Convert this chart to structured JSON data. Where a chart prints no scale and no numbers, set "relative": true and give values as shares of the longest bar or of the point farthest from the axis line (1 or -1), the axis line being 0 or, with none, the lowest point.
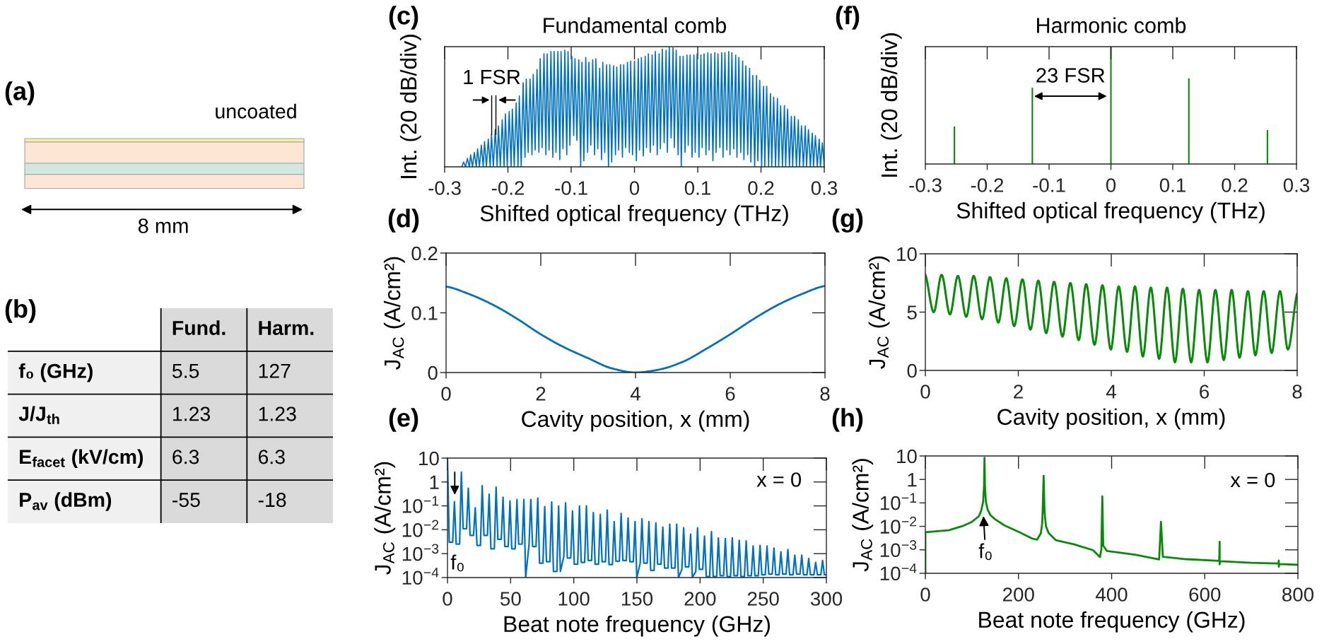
{
  "chart_data": [
    {
      "type": "other",
      "annotations": [
        "(a)",
        "uncoated",
        "8 mm"
      ]
    },
    {
      "type": "other",
      "categories": [
        "f₀ (GHz)",
        "J/J$_{th}$",
        "E$_{facet}$ (kV/cm)",
        "P$_{av}$ (dBm)"
      ],
      "series": [
        {
          "name": "Fund.",
          "values": [
            5.5,
            1.23,
            6.3,
            -55
          ]
        },
        {
          "name": "Harm.",
          "values": [
            127,
            1.23,
            6.3,
            -18
          ]
        }
      ],
      "data_labels": true,
      "annotations": [
        "(b)"
      ]
    },
    {
      "type": "line",
      "title": "Fundamental comb",
      "xlabel": "Shifted optical frequency (THz)",
      "ylabel": "Int. (20 dB/div)",
      "relative": true,
      "xlim": [
        -0.3,
        0.3
      ],
      "xticks": [
        -0.3,
        -0.2,
        -0.1,
        0,
        0.1,
        0.2,
        0.3
      ],
      "series": [
        {
          "color": "#0072bd",
          "x": [
            -0.273,
            -0.27,
            -0.267,
            -0.264,
            -0.261,
            -0.259,
            -0.256,
            -0.253,
            -0.25,
            -0.248,
            -0.245,
            -0.242,
            -0.239,
            -0.237,
            -0.234,
            -0.231,
            -0.228,
            -0.226,
            -0.223,
            -0.22,
            -0.217,
            -0.215,
            -0.212,
            -0.209,
            -0.206,
            -0.204,
            -0.201,
            -0.198,
            -0.195,
            -0.193,
            -0.19,
            -0.187,
            -0.184,
            -0.182,
            -0.179,
            -0.176,
            -0.173,
            -0.171,
            -0.168,
            -0.165,
            -0.162,
            -0.16,
            -0.157,
            -0.154,
            -0.151,
            -0.149,
            -0.146,
            -0.143,
            -0.14,
            -0.138,
            -0.135,
            -0.132,
            -0.129,
            -0.127,
            -0.124,
            -0.121,
            -0.118,
            -0.116,
            -0.113,
            -0.11,
            -0.107,
            -0.105,
            -0.102,
            -0.099,
            -0.096,
            -0.094,
            -0.091,
            -0.088,
            -0.085,
            -0.083,
            -0.08,
            -0.077,
            -0.074,
            -0.072,
            -0.069,
            -0.066,
            -0.063,
            -0.061,
            -0.058,
            -0.055,
            -0.052,
            -0.05,
            -0.047,
            -0.044,
            -0.041,
            -0.039,
            -0.036,
            -0.033,
            -0.03,
            -0.028,
            -0.025,
            -0.022,
            -0.019,
            -0.017,
            -0.014,
            -0.011,
            -0.008,
            -0.006,
            -0.003,
            0,
            0.003,
            0.006,
            0.008,
            0.011,
            0.014,
            0.017,
            0.019,
            0.022,
            0.025,
            0.028,
            0.03,
            0.033,
            0.036,
            0.039,
            0.041,
            0.044,
            0.047,
            0.05,
            0.052,
            0.055,
            0.058,
            0.061,
            0.063,
            0.066,
            0.069,
            0.072,
            0.074,
            0.077,
            0.08,
            0.083,
            0.085,
            0.088,
            0.091,
            0.094,
            0.096,
            0.099,
            0.102,
            0.105,
            0.107,
            0.11,
            0.113,
            0.116,
            0.118,
            0.121,
            0.124,
            0.127,
            0.129,
            0.132,
            0.135,
            0.138,
            0.14,
            0.143,
            0.146,
            0.149,
            0.151,
            0.154,
            0.157,
            0.16,
            0.162,
            0.165,
            0.168,
            0.171,
            0.173,
            0.176,
            0.179,
            0.182,
            0.184,
            0.187,
            0.19,
            0.193,
            0.195,
            0.198,
            0.201,
            0.204,
            0.206,
            0.209,
            0.212,
            0.215,
            0.217,
            0.22,
            0.223,
            0.226,
            0.228,
            0.231,
            0.234,
            0.237,
            0.239,
            0.242,
            0.245,
            0.248,
            0.25,
            0.253,
            0.256,
            0.259,
            0.261,
            0.264,
            0.267,
            0.27,
            0.272,
            0.275,
            0.278,
            0.281,
            0.283,
            0.286,
            0.289,
            0.292,
            0.294,
            0.297,
            0.3
          ],
          "values": [
            0,
            0.04,
            0,
            0.07,
            0,
            0.1,
            0,
            0.12,
            0,
            0.15,
            0,
            0.18,
            0,
            0.21,
            0,
            0.23,
            0,
            0.27,
            0,
            0.31,
            0,
            0.34,
            0,
            0.39,
            0,
            0.44,
            0,
            0.46,
            0,
            0.48,
            0,
            0.53,
            0,
            0.59,
            0,
            0.7,
            0.08,
            0.73,
            0.12,
            0.73,
            0.1,
            0.77,
            0.14,
            0.81,
            0.12,
            0.9,
            0.16,
            0.94,
            0.1,
            0.94,
            0.14,
            0.96,
            0.08,
            0.96,
            0.12,
            0.96,
            0.06,
            0.96,
            0.15,
            0.97,
            0.1,
            0.96,
            0.18,
            0.92,
            0.26,
            0.9,
            0.22,
            0.89,
            0,
            0.87,
            0.05,
            0.91,
            0.12,
            0.87,
            0.18,
            0.89,
            0.1,
            0.9,
            0.15,
            0.82,
            0.06,
            0.87,
            0.12,
            0.85,
            0,
            0.85,
            0.04,
            0.84,
            0.1,
            0.83,
            0.14,
            0.85,
            0.08,
            0.85,
            0.16,
            0.87,
            0.12,
            0.88,
            0.1,
            0.88,
            0.05,
            0.9,
            0.14,
            0.91,
            0.09,
            0.92,
            0.16,
            0.94,
            0.12,
            0.93,
            0.18,
            0.96,
            0.1,
            0.94,
            0.15,
            0.98,
            0.2,
            0.97,
            0.12,
            1,
            0.24,
            0.99,
            0.16,
            0.97,
            0.1,
            0.92,
            0,
            0.92,
            0.12,
            0.93,
            0.18,
            0.93,
            0.08,
            0.93,
            0.12,
            0.94,
            0.08,
            0.93,
            0.16,
            0.94,
            0.1,
            0.95,
            0.14,
            0.94,
            0.05,
            0.95,
            0.12,
            0.94,
            0.16,
            0.95,
            0.08,
            0.95,
            0.14,
            0.96,
            0.1,
            0.95,
            0.15,
            0.93,
            0.08,
            0.91,
            0.12,
            0.88,
            0.06,
            0.84,
            0.1,
            0.82,
            0.04,
            0.76,
            0,
            0.76,
            0.05,
            0.72,
            0,
            0.67,
            0,
            0.67,
            0,
            0.61,
            0,
            0.58,
            0,
            0.57,
            0,
            0.51,
            0,
            0.51,
            0,
            0.48,
            0,
            0.42,
            0,
            0.42,
            0,
            0.39,
            0,
            0.34,
            0,
            0.34,
            0,
            0.31,
            0,
            0.28,
            0,
            0.26,
            0,
            0.23,
            0,
            0.2,
            0
          ]
        }
      ],
      "annotations": [
        "(c)",
        "1 FSR"
      ]
    },
    {
      "type": "line",
      "xlabel": "Cavity position, x (mm)",
      "ylabel": "J$_{AC}$ (A/cm²)",
      "xlim": [
        0,
        8
      ],
      "xticks": [
        0,
        2,
        4,
        6,
        8
      ],
      "ylim": [
        0,
        0.2
      ],
      "yticks": [
        0,
        0.1,
        0.2
      ],
      "series": [
        {
          "color": "#0072bd",
          "x": [
            0,
            0.5,
            1,
            1.5,
            2,
            2.5,
            3,
            3.5,
            4,
            4.5,
            5,
            5.5,
            6,
            6.5,
            7,
            7.5,
            8
          ],
          "values": [
            0.144,
            0.131,
            0.113,
            0.09,
            0.064,
            0.042,
            0.024,
            0.007,
            0,
            0.005,
            0.018,
            0.04,
            0.064,
            0.09,
            0.113,
            0.131,
            0.145
          ]
        }
      ],
      "annotations": [
        "(d)"
      ]
    },
    {
      "type": "line",
      "xlabel": "Beat note frequency (GHz)",
      "ylabel": "J$_{AC}$ (A/cm²)",
      "log": "y",
      "xlim": [
        0,
        300
      ],
      "xticks": [
        0,
        50,
        100,
        150,
        200,
        250,
        300
      ],
      "ylim": [
        0.0001,
        10
      ],
      "yticks": [
        {
          "value": 0.0001,
          "label": "10$^{−4}$"
        },
        {
          "value": 0.001,
          "label": "10$^{−3}$"
        },
        {
          "value": 0.01,
          "label": "10$^{−2}$"
        },
        {
          "value": 0.1,
          "label": "10$^{−1}$"
        },
        1,
        10
      ],
      "series": [
        {
          "color": "#0072bd",
          "x": [
            0,
            1.4,
            4.1,
            5.5,
            6.9,
            9.6,
            11,
            12.4,
            15.1,
            16.5,
            17.9,
            20.6,
            22,
            23.4,
            26.1,
            27.5,
            28.9,
            31.6,
            33,
            34.4,
            37.1,
            38.5,
            39.9,
            42.6,
            44,
            45.4,
            48.1,
            49.5,
            50.9,
            53.6,
            55,
            56.4,
            59.1,
            60.5,
            61.9,
            64.6,
            66,
            67.4,
            70.1,
            71.5,
            72.9,
            75.6,
            77,
            78.4,
            81.1,
            82.5,
            83.9,
            86.6,
            88,
            89.4,
            92.1,
            93.5,
            94.9,
            97.6,
            99,
            100.4,
            103.1,
            104.5,
            105.9,
            108.6,
            110,
            111.4,
            114.1,
            115.5,
            116.9,
            119.6,
            121,
            122.4,
            125.1,
            126.5,
            127.9,
            130.6,
            132,
            133.4,
            136.1,
            137.5,
            138.9,
            141.6,
            143,
            144.4,
            147.1,
            148.5,
            149.9,
            152.6,
            154,
            155.4,
            158.1,
            159.5,
            160.9,
            163.6,
            165,
            166.4,
            169.1,
            170.5,
            171.9,
            174.6,
            176,
            177.4,
            180.1,
            181.5,
            182.9,
            185.6,
            187,
            188.4,
            191.1,
            192.5,
            193.9,
            196.6,
            198,
            199.4,
            202.1,
            203.5,
            204.9,
            207.6,
            209,
            210.4,
            213.1,
            214.5,
            215.9,
            218.6,
            220,
            221.4,
            224.1,
            225.5,
            226.9,
            229.6,
            231,
            232.4,
            235.1,
            236.5,
            237.9,
            240.6,
            242,
            243.4,
            246.1,
            247.5,
            248.9,
            251.6,
            253,
            254.4,
            257.1,
            258.5,
            259.9,
            262.6,
            264,
            265.4,
            268.1,
            269.5,
            270.9,
            273.6,
            275,
            276.4,
            279.1,
            280.5,
            281.9,
            284.6,
            286,
            287.4,
            290.1,
            291.5,
            292.9,
            295.6,
            297,
            298.4,
            300
          ],
          "values": [
            10,
            0.003,
            0.003,
            0.15,
            0.0025,
            0.0025,
            2.6,
            0.011,
            0.011,
            0.55,
            0.0058,
            0.0058,
            0.083,
            0.0022,
            0.0022,
            0.7,
            0.0058,
            0.0058,
            0.31,
            0.0016,
            0.0016,
            0.61,
            0.004,
            0.004,
            0.23,
            0.002,
            0.002,
            0.16,
            0.0016,
            0.0016,
            0.185,
            0.0025,
            0.0025,
            0.185,
            0.0001,
            0.0025,
            0.185,
            0.002,
            0.002,
            0.21,
            0.0004,
            0.0004,
            0.094,
            0.00046,
            0.00046,
            0.145,
            0.00018,
            0.00018,
            0.099,
            0.00018,
            0.00075,
            0.134,
            0.00066,
            0.00066,
            0.061,
            0.00036,
            0.00036,
            0.099,
            0.00043,
            0.00043,
            0.1,
            0.00052,
            0.00052,
            0.052,
            0.00036,
            0.00036,
            0.044,
            0.00046,
            0.00046,
            0.066,
            0.00035,
            0.00035,
            0.022,
            0.00048,
            0.00048,
            0.048,
            0.00052,
            0.00052,
            0.031,
            0.00046,
            0.00046,
            0.022,
            0.0001,
            0.0004,
            0.029,
            0.0004,
            0.0004,
            0.022,
            0.0002,
            0.0002,
            0.019,
            0.00036,
            0.00036,
            0.013,
            0.00025,
            0.00025,
            0.017,
            0.00025,
            0.00025,
            0.017,
            0.0001,
            0.00022,
            0.012,
            0.00028,
            0.00028,
            0.0066,
            0.0001,
            0.00018,
            0.012,
            0.00022,
            0.00022,
            0.0054,
            0.00011,
            0.00011,
            0.0083,
            0.00011,
            0.00011,
            0.0046,
            0.00012,
            0.00012,
            0.0043,
            0.00011,
            0.00011,
            0.0046,
            0.00012,
            0.00012,
            0.0036,
            0.00011,
            0.00011,
            0.0034,
            0.00012,
            0.00012,
            0.0021,
            0.00012,
            0.00012,
            0.0022,
            0.00013,
            0.00013,
            0.0021,
            0.00014,
            0.00014,
            0.0017,
            0.00013,
            0.00013,
            0.0012,
            0.00014,
            0.00014,
            0.0015,
            0.00013,
            0.00013,
            0.00086,
            0.00014,
            0.00014,
            0.00086,
            0.00013,
            0.00013,
            0.00062,
            0.00013,
            0.00013,
            0.00043,
            0.00013,
            0.00013,
            0.00052,
            0.00013,
            0.00013
          ]
        }
      ],
      "annotations": [
        "(e)",
        "f₀",
        "x = 0"
      ]
    },
    {
      "type": "bar",
      "title": "Harmonic comb",
      "xlabel": "Shifted optical frequency (THz)",
      "ylabel": "Int. (20 dB/div)",
      "relative": true,
      "xlim": [
        -0.3,
        0.3
      ],
      "xticks": [
        -0.3,
        -0.2,
        -0.1,
        0,
        0.1,
        0.2,
        0.3
      ],
      "x": [
        -0.253,
        -0.127,
        0,
        0.126,
        0.253
      ],
      "values": [
        0.32,
        0.65,
        1,
        0.73,
        0.29
      ],
      "color": "#0a8a0a",
      "annotations": [
        "(f)",
        "23 FSR"
      ]
    },
    {
      "type": "line",
      "xlabel": "Cavity position, x (mm)",
      "ylabel": "J$_{AC}$ (A/cm²)",
      "xlim": [
        0,
        8
      ],
      "xticks": [
        0,
        2,
        4,
        6,
        8
      ],
      "ylim": [
        0,
        10
      ],
      "yticks": [
        0,
        5,
        10
      ],
      "series": [
        {
          "color": "#0a8a0a",
          "x": [
            0,
            0.18,
            0.35,
            0.53,
            0.7,
            0.88,
            1.04,
            1.22,
            1.39,
            1.57,
            1.74,
            1.91,
            2.09,
            2.26,
            2.43,
            2.6,
            2.77,
            2.95,
            3.12,
            3.3,
            3.46,
            3.64,
            3.81,
            3.99,
            4.16,
            4.34,
            4.51,
            4.68,
            4.85,
            5.03,
            5.2,
            5.37,
            5.54,
            5.72,
            5.89,
            6.07,
            6.24,
            6.42,
            6.59,
            6.76,
            6.94,
            7.1,
            7.28,
            7.45,
            7.63,
            7.8,
            8
          ],
          "values": [
            8.2,
            5.0,
            8.2,
            4.8,
            8.1,
            4.6,
            8.1,
            4.4,
            8.0,
            4.1,
            7.9,
            3.8,
            7.8,
            3.5,
            7.7,
            3.2,
            7.6,
            2.9,
            7.5,
            2.6,
            7.4,
            2.2,
            7.3,
            1.8,
            7.2,
            1.6,
            7.2,
            1.2,
            7.1,
            1.0,
            7.1,
            0.7,
            7.0,
            0.7,
            6.9,
            0.7,
            6.9,
            0.9,
            6.9,
            1.1,
            6.8,
            1.3,
            6.8,
            1.5,
            6.8,
            1.8,
            6.6
          ]
        }
      ],
      "annotations": [
        "(g)"
      ]
    },
    {
      "type": "line",
      "xlabel": "Beat note frequency (GHz)",
      "ylabel": "J$_{AC}$ (A/cm²)",
      "log": "y",
      "xlim": [
        0,
        800
      ],
      "xticks": [
        0,
        200,
        400,
        600,
        800
      ],
      "ylim": [
        0.0001,
        10
      ],
      "yticks": [
        {
          "value": 0.0001,
          "label": "10$^{−4}$"
        },
        {
          "value": 0.001,
          "label": "10$^{−3}$"
        },
        {
          "value": 0.01,
          "label": "10$^{−2}$"
        },
        {
          "value": 0.1,
          "label": "10$^{−1}$"
        },
        1,
        10
      ],
      "series": [
        {
          "color": "#0a8a0a",
          "x": [
            0,
            0,
            50,
            80,
            100,
            115,
            120,
            124,
            126,
            127,
            128,
            130,
            134,
            140,
            150,
            170,
            200,
            230,
            240,
            248,
            251,
            252,
            254,
            256,
            259,
            265,
            280,
            320,
            360,
            375,
            378,
            380,
            382,
            390,
            450,
            502,
            506,
            510,
            560,
            631,
            632,
            632,
            633,
            700,
            758,
            759,
            759,
            760,
            800
          ],
          "values": [
            0.0001,
            0.0056,
            0.0068,
            0.0103,
            0.0156,
            0.027,
            0.047,
            0.11,
            0.5,
            8.4,
            0.5,
            0.11,
            0.05,
            0.03,
            0.02,
            0.011,
            0.0059,
            0.003,
            0.0027,
            0.0051,
            0.0135,
            0.054,
            1.43,
            0.041,
            0.01,
            0.0051,
            0.0026,
            0.0017,
            0.00097,
            0.00049,
            0.0011,
            0.19,
            0.0015,
            0.0009,
            0.00062,
            0.00039,
            0.0156,
            0.00051,
            0.0004,
            0.00034,
            0.0022,
            0.00024,
            0.00033,
            0.00028,
            0.00026,
            0.00035,
            0.00019,
            0.00025,
            0.00023
          ]
        }
      ],
      "annotations": [
        "(h)",
        "f₀",
        "x = 0"
      ]
    }
  ]
}
